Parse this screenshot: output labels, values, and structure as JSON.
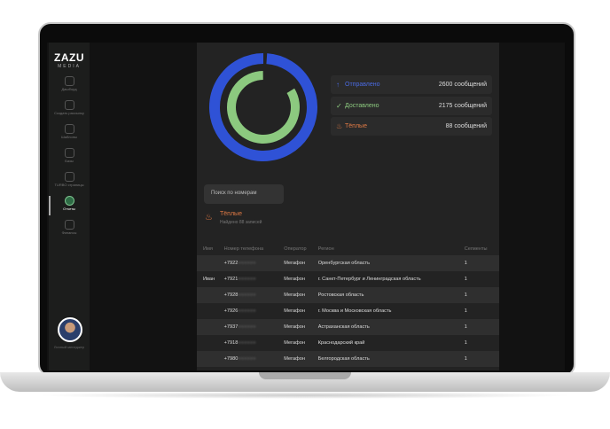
{
  "brand": {
    "name": "ZAZU",
    "sub": "MEDIA"
  },
  "sidebar": {
    "items": [
      {
        "label": "Дашборд",
        "icon": "dashboard-icon"
      },
      {
        "label": "Создать рассылку",
        "icon": "create-mailing-icon"
      },
      {
        "label": "Шаблоны",
        "icon": "templates-icon"
      },
      {
        "label": "Базы",
        "icon": "database-icon"
      },
      {
        "label": "TURBO страницы",
        "icon": "turbo-pages-icon"
      },
      {
        "label": "Отчеты",
        "icon": "reports-icon",
        "active": true
      },
      {
        "label": "Финансы",
        "icon": "finance-icon"
      }
    ],
    "user": "Личный менеджер"
  },
  "chart_data": {
    "type": "donut",
    "series": [
      {
        "name": "Отправлено",
        "value": 2600,
        "color": "#2f52d6"
      },
      {
        "name": "Доставлено",
        "value": 2175,
        "color": "#8cc97f"
      }
    ]
  },
  "stats": [
    {
      "label": "Отправлено",
      "value": "2600 сообщений",
      "color": "#4a6ae0",
      "icon": "arrow-up-icon"
    },
    {
      "label": "Доставлено",
      "value": "2175 сообщений",
      "color": "#8cc97f",
      "icon": "check-circle-icon"
    },
    {
      "label": "Тёплые",
      "value": "88 сообщений",
      "color": "#e07a45",
      "icon": "pot-icon"
    }
  ],
  "search": {
    "placeholder": "Поиск по номерам"
  },
  "section": {
    "title": "Тёплые",
    "subtitle": "Найдено 88 записей"
  },
  "table": {
    "headers": [
      "Имя",
      "Номер телефона",
      "Оператор",
      "Регион",
      "Сегменты"
    ],
    "rows": [
      [
        "",
        "+7922",
        "Мегафон",
        "Оренбургская область",
        "1"
      ],
      [
        "Иван",
        "+7921",
        "Мегафон",
        "г. Санкт-Петербург и Ленинградская область",
        "1"
      ],
      [
        "",
        "+7928",
        "Мегафон",
        "Ростовская область",
        "1"
      ],
      [
        "",
        "+7926",
        "Мегафон",
        "г. Москва и Московская область",
        "1"
      ],
      [
        "",
        "+7937",
        "Мегафон",
        "Астраханская область",
        "1"
      ],
      [
        "",
        "+7918",
        "Мегафон",
        "Краснодарский край",
        "1"
      ],
      [
        "",
        "+7980",
        "Мегафон",
        "Белгородская область",
        "1"
      ]
    ]
  }
}
